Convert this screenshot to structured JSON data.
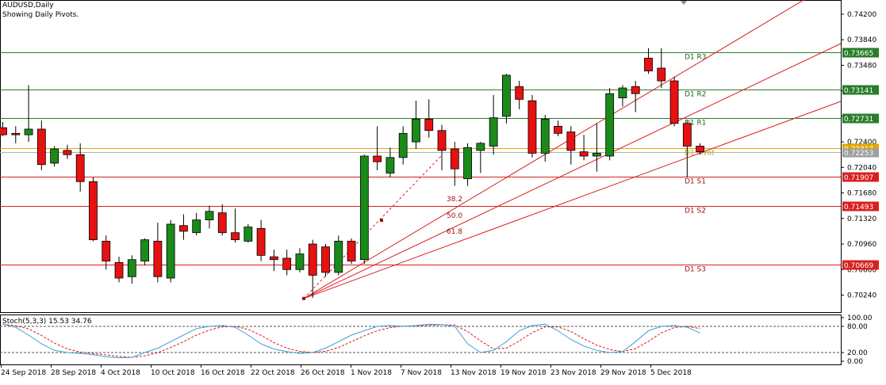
{
  "header": {
    "symbol_line": "AUDUSD,Daily",
    "indicator_line": "Showing Daily Pivots."
  },
  "price_axis": {
    "ticks": [
      "0.74200",
      "0.73840",
      "0.73480",
      "0.73120",
      "0.72760",
      "0.72400",
      "0.72040",
      "0.71680",
      "0.71320",
      "0.70960",
      "0.70600",
      "0.70240"
    ],
    "range": [
      0.7,
      0.744
    ]
  },
  "pivots": [
    {
      "label": "D1 R3",
      "price": 0.73665,
      "value_text": "0.73665",
      "color": "#2a7d2a"
    },
    {
      "label": "D1 R2",
      "price": 0.73141,
      "value_text": "0.73141",
      "color": "#2a7d2a"
    },
    {
      "label": "D1 R1",
      "price": 0.72731,
      "value_text": "0.72731",
      "color": "#2a7d2a"
    },
    {
      "label": "D1 Pivot",
      "price": 0.72317,
      "value_text": "0.72317",
      "color": "#e0a800"
    },
    {
      "label": "D1 S1",
      "price": 0.71907,
      "value_text": "0.71907",
      "color": "#d92020"
    },
    {
      "label": "D1 S2",
      "price": 0.71493,
      "value_text": "0.71493",
      "color": "#d92020"
    },
    {
      "label": "D1 S3",
      "price": 0.70669,
      "value_text": "0.70669",
      "color": "#d92020"
    }
  ],
  "current_price": {
    "price": 0.72253,
    "value_text": "0.72253"
  },
  "fib_fan": {
    "origin_price": 0.70192,
    "labels": [
      "38.2",
      "50.0",
      "61.8"
    ]
  },
  "stoch": {
    "label": "Stoch(5,3,3) 15.53 34.76",
    "ticks": [
      "100.00",
      "80.00",
      "20.00",
      "0.00"
    ]
  },
  "date_axis": [
    "24 Sep 2018",
    "28 Sep 2018",
    "4 Oct 2018",
    "10 Oct 2018",
    "16 Oct 2018",
    "22 Oct 2018",
    "26 Oct 2018",
    "1 Nov 2018",
    "7 Nov 2018",
    "13 Nov 2018",
    "19 Nov 2018",
    "23 Nov 2018",
    "29 Nov 2018",
    "5 Dec 2018"
  ],
  "chart_data": {
    "type": "candlestick",
    "ylim": [
      0.7,
      0.744
    ],
    "series": [
      {
        "o": 0.726,
        "h": 0.7268,
        "l": 0.7248,
        "c": 0.725
      },
      {
        "o": 0.7252,
        "h": 0.7262,
        "l": 0.7238,
        "c": 0.725
      },
      {
        "o": 0.725,
        "h": 0.732,
        "l": 0.724,
        "c": 0.7258
      },
      {
        "o": 0.7258,
        "h": 0.727,
        "l": 0.72,
        "c": 0.7208
      },
      {
        "o": 0.721,
        "h": 0.7234,
        "l": 0.7205,
        "c": 0.723
      },
      {
        "o": 0.7228,
        "h": 0.7236,
        "l": 0.7216,
        "c": 0.7222
      },
      {
        "o": 0.7222,
        "h": 0.7238,
        "l": 0.717,
        "c": 0.7184
      },
      {
        "o": 0.7184,
        "h": 0.719,
        "l": 0.71,
        "c": 0.7102
      },
      {
        "o": 0.71,
        "h": 0.7108,
        "l": 0.706,
        "c": 0.7072
      },
      {
        "o": 0.707,
        "h": 0.7078,
        "l": 0.7042,
        "c": 0.7048
      },
      {
        "o": 0.705,
        "h": 0.708,
        "l": 0.704,
        "c": 0.7074
      },
      {
        "o": 0.7072,
        "h": 0.7104,
        "l": 0.7066,
        "c": 0.7102
      },
      {
        "o": 0.71,
        "h": 0.7126,
        "l": 0.7042,
        "c": 0.705
      },
      {
        "o": 0.7048,
        "h": 0.713,
        "l": 0.7042,
        "c": 0.7124
      },
      {
        "o": 0.7122,
        "h": 0.7138,
        "l": 0.7102,
        "c": 0.7114
      },
      {
        "o": 0.7112,
        "h": 0.714,
        "l": 0.7108,
        "c": 0.713
      },
      {
        "o": 0.713,
        "h": 0.715,
        "l": 0.7118,
        "c": 0.7142
      },
      {
        "o": 0.714,
        "h": 0.7152,
        "l": 0.7108,
        "c": 0.7112
      },
      {
        "o": 0.7112,
        "h": 0.7146,
        "l": 0.7098,
        "c": 0.7102
      },
      {
        "o": 0.71,
        "h": 0.7124,
        "l": 0.7098,
        "c": 0.712
      },
      {
        "o": 0.7118,
        "h": 0.713,
        "l": 0.7072,
        "c": 0.708
      },
      {
        "o": 0.7078,
        "h": 0.7088,
        "l": 0.7058,
        "c": 0.7074
      },
      {
        "o": 0.7076,
        "h": 0.7088,
        "l": 0.7052,
        "c": 0.706
      },
      {
        "o": 0.706,
        "h": 0.709,
        "l": 0.7056,
        "c": 0.7082
      },
      {
        "o": 0.7096,
        "h": 0.7102,
        "l": 0.702,
        "c": 0.7052
      },
      {
        "o": 0.7092,
        "h": 0.7096,
        "l": 0.705,
        "c": 0.7056
      },
      {
        "o": 0.7056,
        "h": 0.7108,
        "l": 0.7052,
        "c": 0.71
      },
      {
        "o": 0.71,
        "h": 0.7104,
        "l": 0.7068,
        "c": 0.7072
      },
      {
        "o": 0.7074,
        "h": 0.7222,
        "l": 0.7068,
        "c": 0.722
      },
      {
        "o": 0.722,
        "h": 0.7262,
        "l": 0.72,
        "c": 0.7212
      },
      {
        "o": 0.7196,
        "h": 0.7232,
        "l": 0.719,
        "c": 0.7218
      },
      {
        "o": 0.7218,
        "h": 0.7262,
        "l": 0.7208,
        "c": 0.7252
      },
      {
        "o": 0.724,
        "h": 0.7298,
        "l": 0.723,
        "c": 0.7272
      },
      {
        "o": 0.7272,
        "h": 0.73,
        "l": 0.7246,
        "c": 0.7256
      },
      {
        "o": 0.7256,
        "h": 0.7264,
        "l": 0.72,
        "c": 0.7228
      },
      {
        "o": 0.723,
        "h": 0.724,
        "l": 0.7178,
        "c": 0.7202
      },
      {
        "o": 0.7188,
        "h": 0.7238,
        "l": 0.7178,
        "c": 0.7232
      },
      {
        "o": 0.7228,
        "h": 0.724,
        "l": 0.7196,
        "c": 0.7238
      },
      {
        "o": 0.7234,
        "h": 0.7306,
        "l": 0.7222,
        "c": 0.7274
      },
      {
        "o": 0.7276,
        "h": 0.7336,
        "l": 0.7266,
        "c": 0.7334
      },
      {
        "o": 0.7318,
        "h": 0.7326,
        "l": 0.7286,
        "c": 0.73
      },
      {
        "o": 0.7298,
        "h": 0.7306,
        "l": 0.7218,
        "c": 0.7224
      },
      {
        "o": 0.7224,
        "h": 0.7278,
        "l": 0.7212,
        "c": 0.7272
      },
      {
        "o": 0.7262,
        "h": 0.727,
        "l": 0.7248,
        "c": 0.7252
      },
      {
        "o": 0.7254,
        "h": 0.7262,
        "l": 0.7208,
        "c": 0.7228
      },
      {
        "o": 0.7226,
        "h": 0.725,
        "l": 0.7214,
        "c": 0.722
      },
      {
        "o": 0.722,
        "h": 0.7266,
        "l": 0.7198,
        "c": 0.7224
      },
      {
        "o": 0.722,
        "h": 0.7316,
        "l": 0.7214,
        "c": 0.7308
      },
      {
        "o": 0.7302,
        "h": 0.732,
        "l": 0.729,
        "c": 0.7316
      },
      {
        "o": 0.7318,
        "h": 0.7326,
        "l": 0.7282,
        "c": 0.7308
      },
      {
        "o": 0.7358,
        "h": 0.7372,
        "l": 0.7336,
        "c": 0.734
      },
      {
        "o": 0.7344,
        "h": 0.7372,
        "l": 0.7316,
        "c": 0.7326
      },
      {
        "o": 0.7326,
        "h": 0.7332,
        "l": 0.7262,
        "c": 0.7266
      },
      {
        "o": 0.7266,
        "h": 0.727,
        "l": 0.719,
        "c": 0.7234
      },
      {
        "o": 0.7234,
        "h": 0.7238,
        "l": 0.7222,
        "c": 0.7226
      }
    ]
  }
}
